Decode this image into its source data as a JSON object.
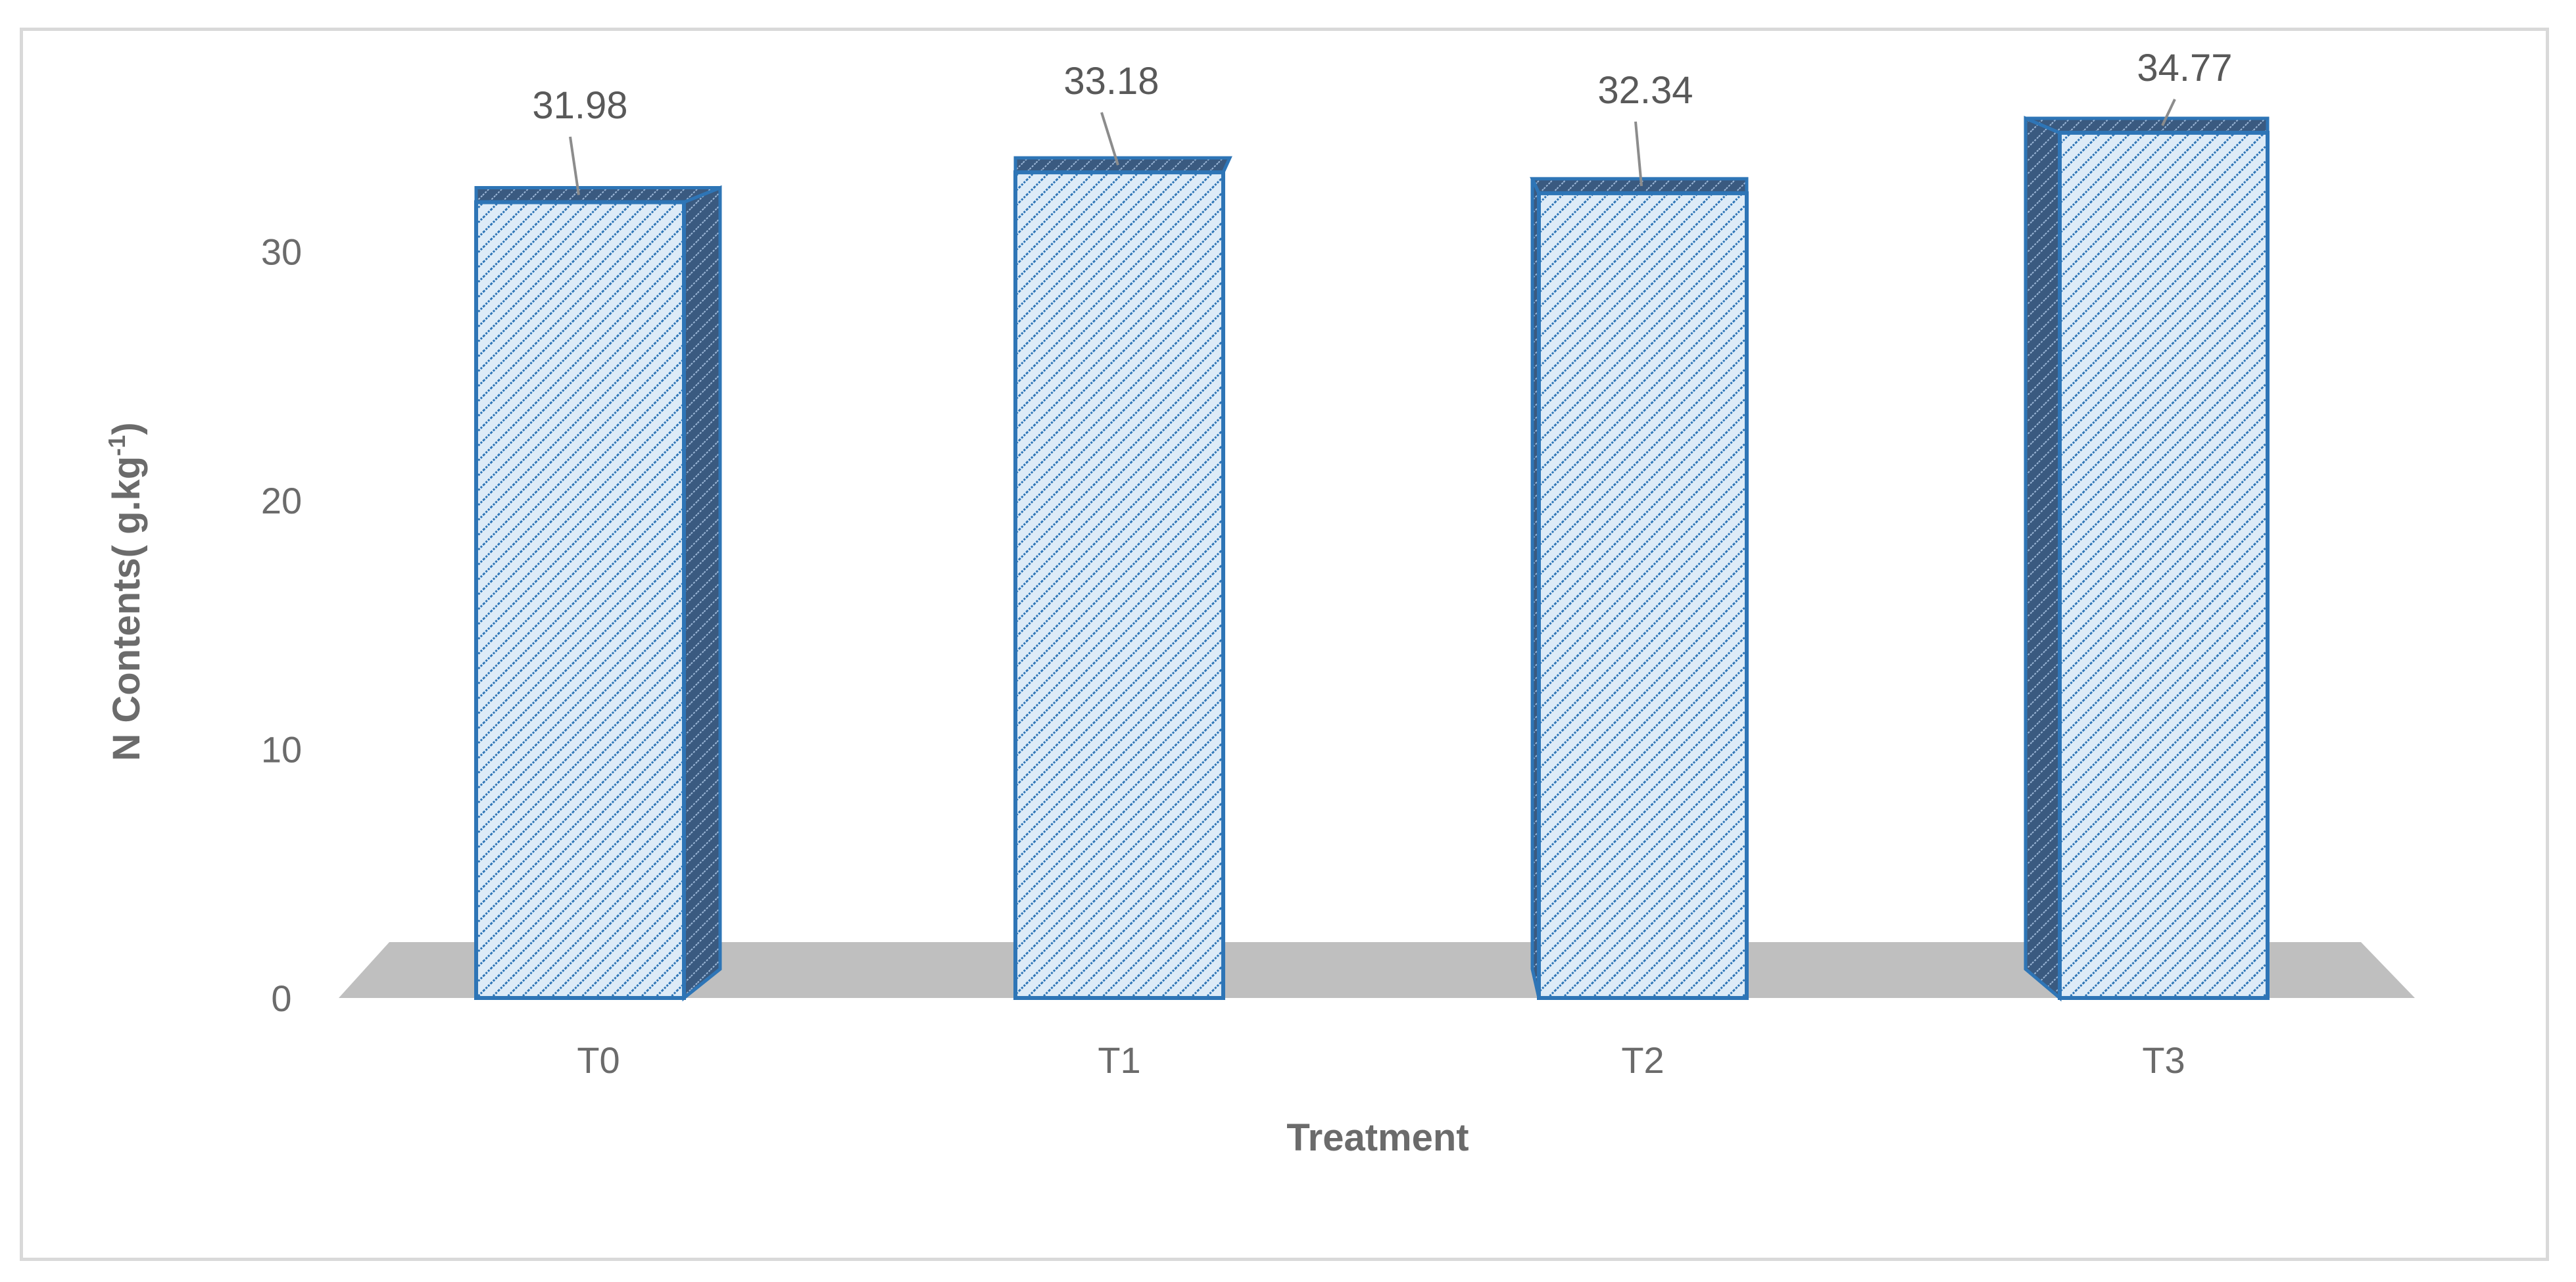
{
  "chart_data": {
    "type": "bar",
    "style": "3d-column",
    "categories": [
      "T0",
      "T1",
      "T2",
      "T3"
    ],
    "values": [
      31.98,
      33.18,
      32.34,
      34.77
    ],
    "data_labels": [
      "31.98",
      "33.18",
      "32.34",
      "34.77"
    ],
    "xlabel": "Treatment",
    "ylabel_main": "N Contents( g.kg",
    "ylabel_sup": "-1",
    "ylabel_end": ")",
    "yticks": [
      0,
      10,
      20,
      30
    ],
    "ytick_labels": [
      "0",
      "10",
      "20",
      "30"
    ],
    "ylim": [
      0,
      35
    ],
    "grid": false,
    "legend": "none",
    "colors": {
      "bar_fill": "#ddebf7",
      "bar_hatch": "#2e75b6",
      "bar_edge": "#2e75b6",
      "bar_side": "#3a5a80",
      "floor": "#bfbfbf",
      "leader_line": "#8c8c8c"
    }
  }
}
